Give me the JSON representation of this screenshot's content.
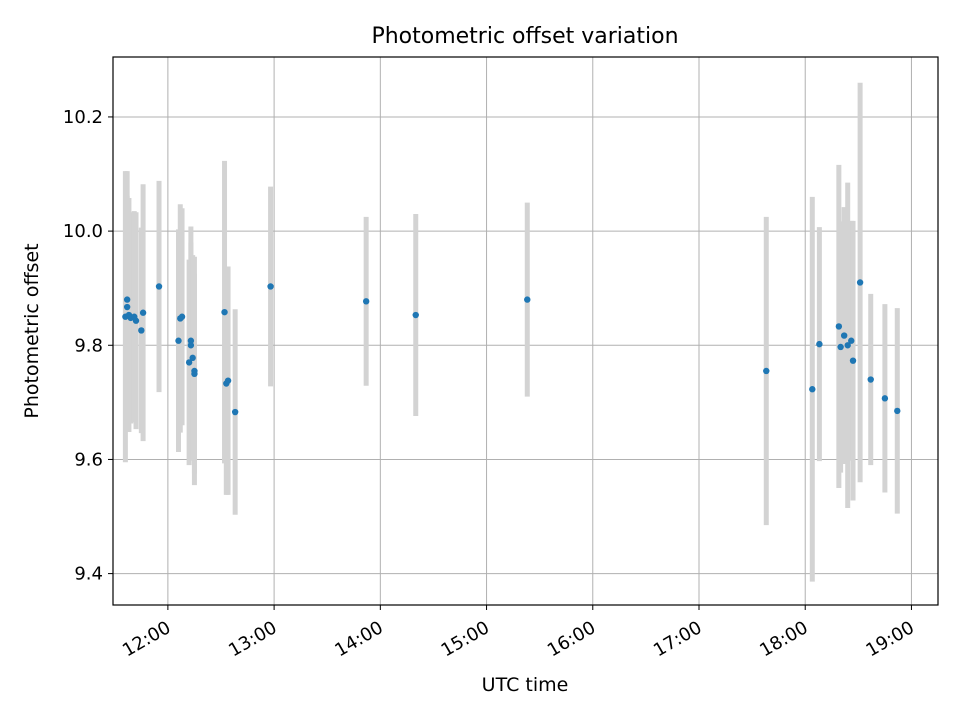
{
  "chart_data": {
    "type": "scatter",
    "title": "Photometric offset variation",
    "xlabel": "UTC time",
    "ylabel": "Photometric offset",
    "x_ticks": [
      "12:00",
      "13:00",
      "14:00",
      "15:00",
      "16:00",
      "17:00",
      "18:00",
      "19:00"
    ],
    "y_ticks": [
      "9.4",
      "9.6",
      "9.8",
      "10.0",
      "10.2"
    ],
    "xlim": [
      "11:29",
      "19:15"
    ],
    "ylim": [
      9.345,
      10.305
    ],
    "grid": true,
    "colors": {
      "point": "#1f77b4",
      "errorbar": "#d3d3d3",
      "grid": "#b0b0b0"
    },
    "series": [
      {
        "points": [
          {
            "x": "11:36",
            "y": 9.85,
            "err": 0.255
          },
          {
            "x": "11:37",
            "y": 9.88,
            "err": 0.225
          },
          {
            "x": "11:37",
            "y": 9.867,
            "err": 0.195
          },
          {
            "x": "11:38",
            "y": 9.853,
            "err": 0.205
          },
          {
            "x": "11:39",
            "y": 9.848,
            "err": 0.185
          },
          {
            "x": "11:41",
            "y": 9.85,
            "err": 0.185
          },
          {
            "x": "11:42",
            "y": 9.843,
            "err": 0.19
          },
          {
            "x": "11:45",
            "y": 9.826,
            "err": 0.18
          },
          {
            "x": "11:46",
            "y": 9.857,
            "err": 0.225
          },
          {
            "x": "11:55",
            "y": 9.903,
            "err": 0.185
          },
          {
            "x": "12:06",
            "y": 9.808,
            "err": 0.195
          },
          {
            "x": "12:07",
            "y": 9.847,
            "err": 0.2
          },
          {
            "x": "12:08",
            "y": 9.85,
            "err": 0.19
          },
          {
            "x": "12:12",
            "y": 9.77,
            "err": 0.18
          },
          {
            "x": "12:13",
            "y": 9.808,
            "err": 0.2
          },
          {
            "x": "12:13",
            "y": 9.8,
            "err": 0.18
          },
          {
            "x": "12:14",
            "y": 9.778,
            "err": 0.18
          },
          {
            "x": "12:15",
            "y": 9.755,
            "err": 0.2
          },
          {
            "x": "12:15",
            "y": 9.75,
            "err": 0.175
          },
          {
            "x": "12:32",
            "y": 9.858,
            "err": 0.265
          },
          {
            "x": "12:33",
            "y": 9.733,
            "err": 0.195
          },
          {
            "x": "12:34",
            "y": 9.738,
            "err": 0.2
          },
          {
            "x": "12:38",
            "y": 9.683,
            "err": 0.18
          },
          {
            "x": "12:58",
            "y": 9.903,
            "err": 0.175
          },
          {
            "x": "13:52",
            "y": 9.877,
            "err": 0.148
          },
          {
            "x": "14:20",
            "y": 9.853,
            "err": 0.177
          },
          {
            "x": "15:23",
            "y": 9.88,
            "err": 0.17
          },
          {
            "x": "17:38",
            "y": 9.755,
            "err": 0.27
          },
          {
            "x": "18:04",
            "y": 9.723,
            "err": 0.337
          },
          {
            "x": "18:08",
            "y": 9.802,
            "err": 0.205
          },
          {
            "x": "18:19",
            "y": 9.833,
            "err": 0.283
          },
          {
            "x": "18:20",
            "y": 9.797,
            "err": 0.22
          },
          {
            "x": "18:22",
            "y": 9.817,
            "err": 0.225
          },
          {
            "x": "18:24",
            "y": 9.8,
            "err": 0.285
          },
          {
            "x": "18:26",
            "y": 9.808,
            "err": 0.21
          },
          {
            "x": "18:27",
            "y": 9.773,
            "err": 0.245
          },
          {
            "x": "18:31",
            "y": 9.91,
            "err": 0.35
          },
          {
            "x": "18:37",
            "y": 9.74,
            "err": 0.15
          },
          {
            "x": "18:45",
            "y": 9.707,
            "err": 0.165
          },
          {
            "x": "18:52",
            "y": 9.685,
            "err": 0.18
          }
        ]
      }
    ]
  }
}
